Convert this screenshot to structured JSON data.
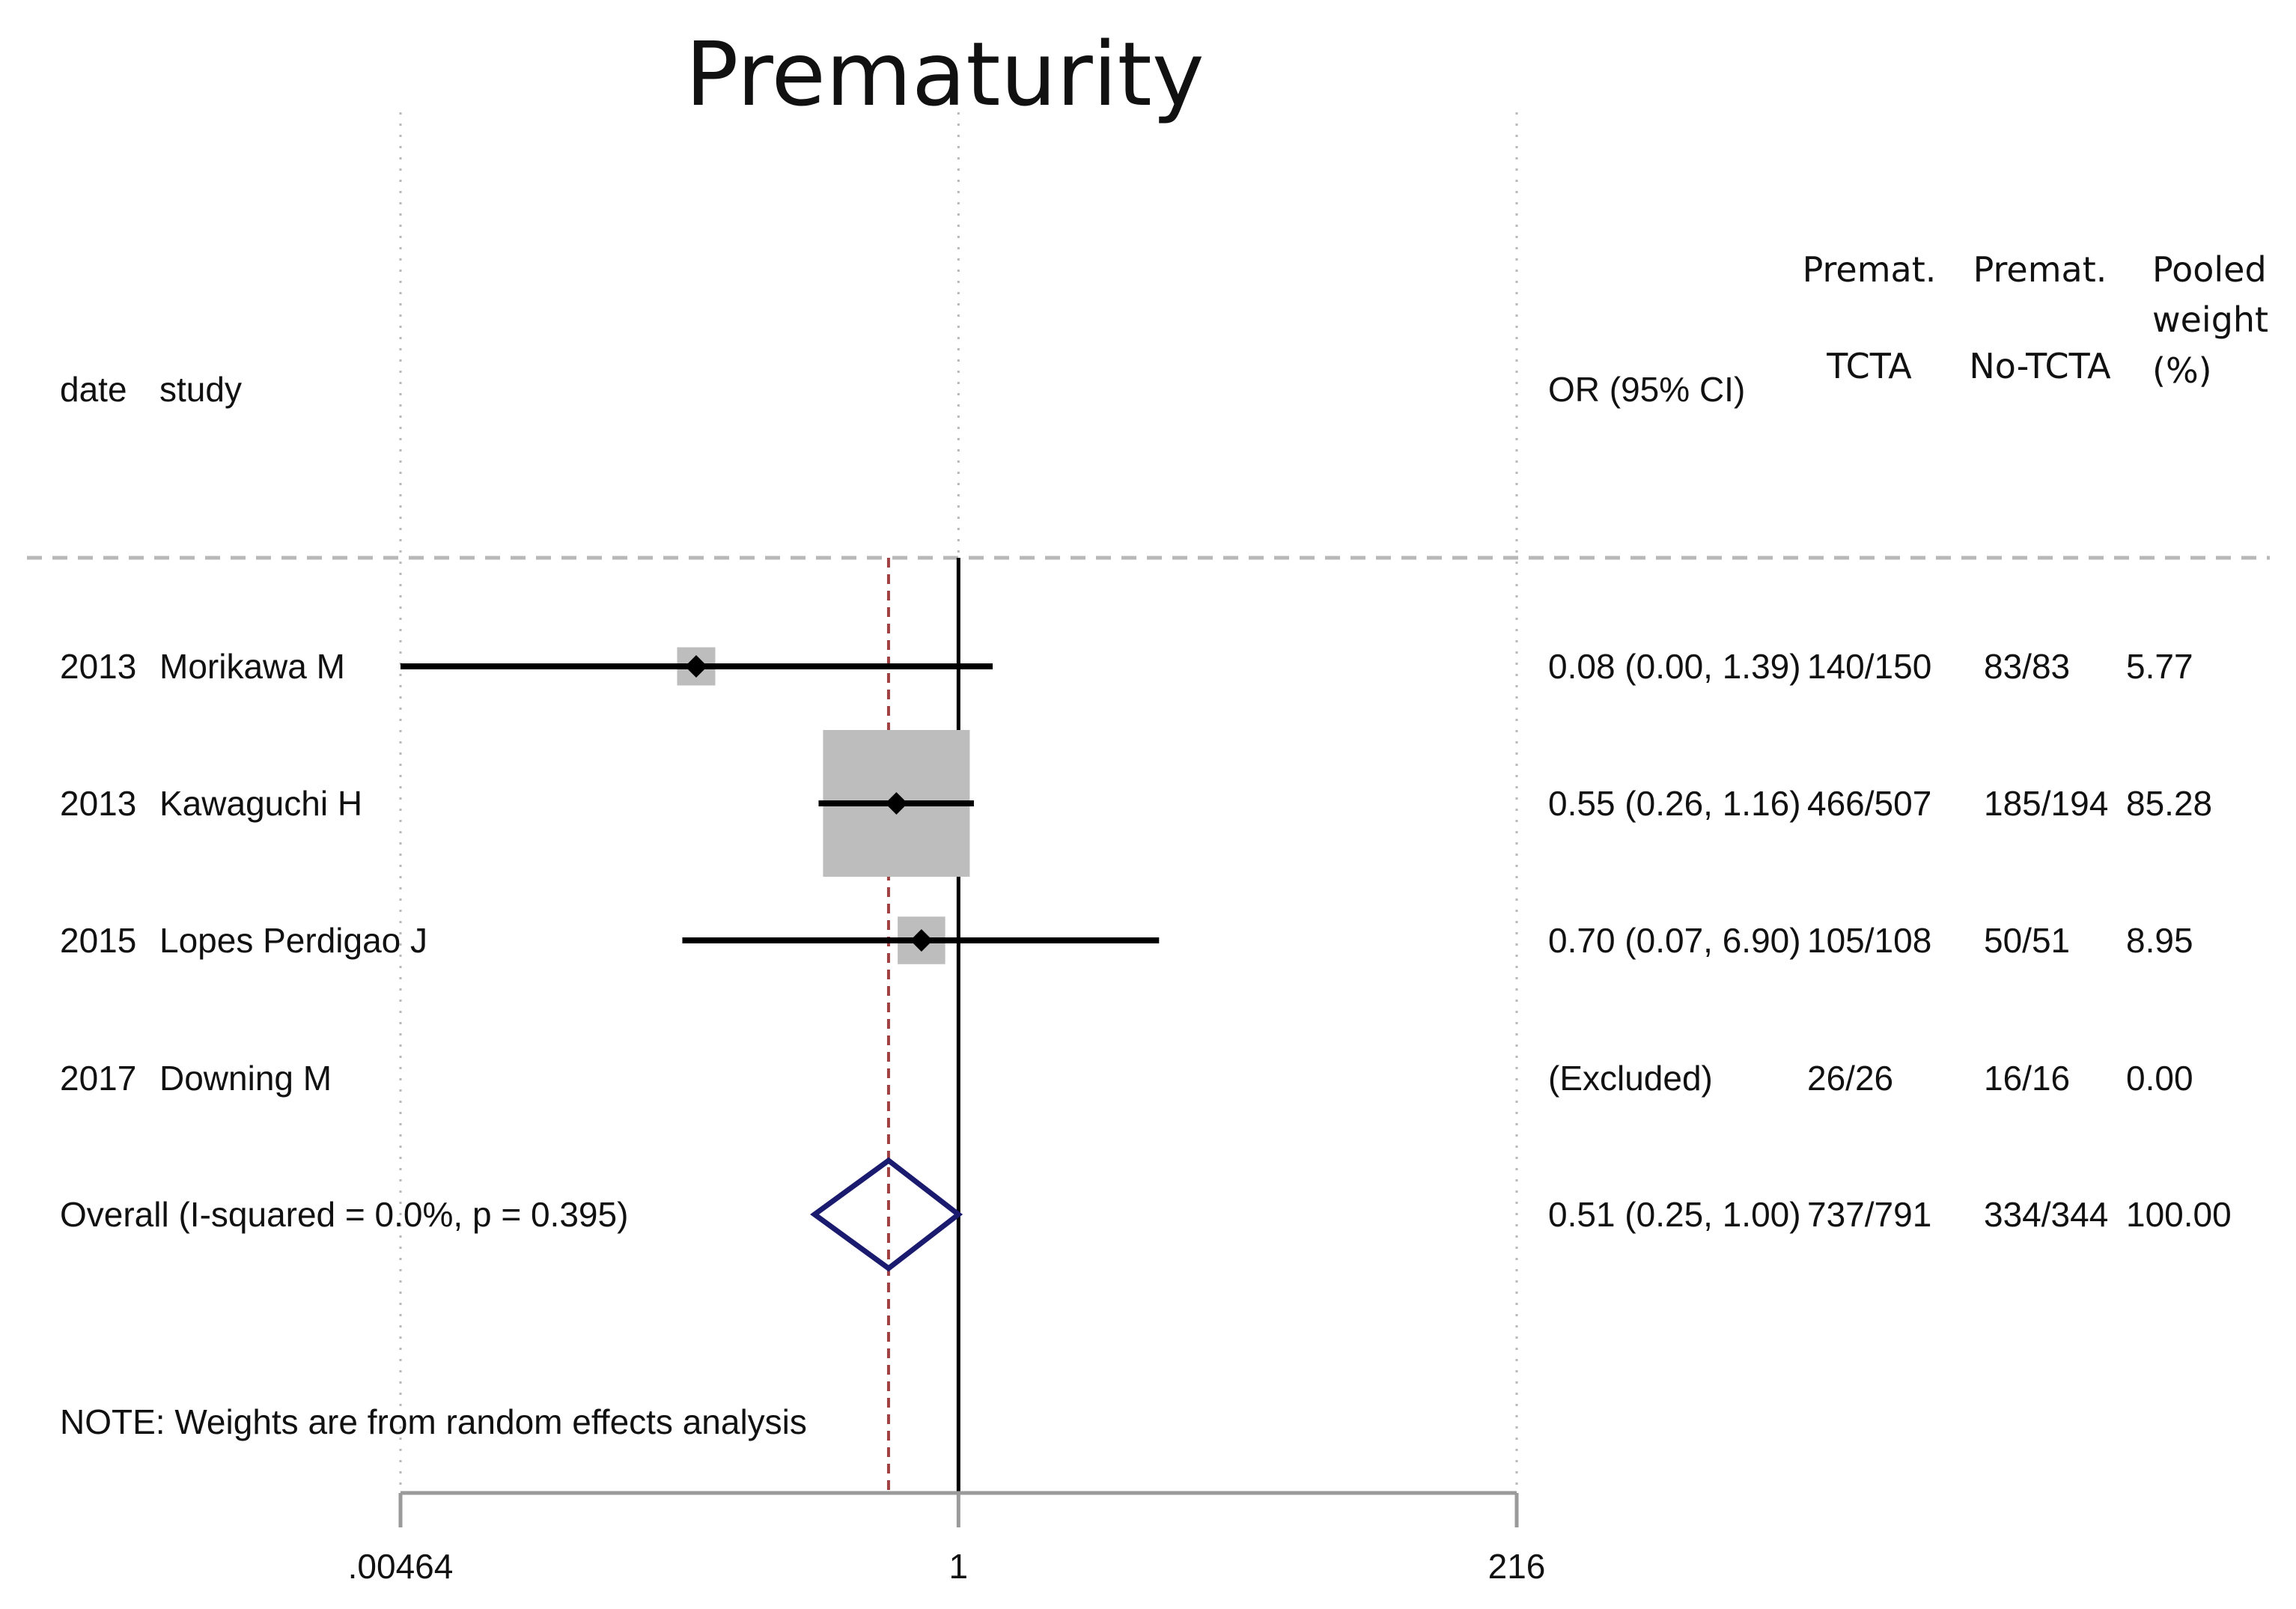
{
  "chart_data": {
    "type": "forest",
    "title": "Prematurity",
    "scale": "log",
    "xlim": [
      0.00464,
      216
    ],
    "x_ticks": [
      {
        "value": 0.00464,
        "label": ".00464"
      },
      {
        "value": 1,
        "label": "1"
      },
      {
        "value": 216,
        "label": "216"
      }
    ],
    "null_line": 1,
    "overall_line": 0.51,
    "headers": {
      "date": "date",
      "study": "study",
      "or": "OR (95% CI)",
      "tcta": [
        "Premat.",
        "TCTA"
      ],
      "notcta": [
        "Premat.",
        "No-TCTA"
      ],
      "weight": [
        "Pooled",
        "weight",
        "(%)"
      ]
    },
    "studies": [
      {
        "date": "2013",
        "study": "Morikawa M",
        "or": 0.08,
        "lower": 0.0,
        "upper": 1.39,
        "or_text": "0.08 (0.00, 1.39)",
        "tcta": "140/150",
        "notcta": "83/83",
        "weight": 5.77,
        "weight_text": "5.77"
      },
      {
        "date": "2013",
        "study": "Kawaguchi H",
        "or": 0.55,
        "lower": 0.26,
        "upper": 1.16,
        "or_text": "0.55 (0.26, 1.16)",
        "tcta": "466/507",
        "notcta": "185/194",
        "weight": 85.28,
        "weight_text": "85.28"
      },
      {
        "date": "2015",
        "study": "Lopes Perdigao J",
        "or": 0.7,
        "lower": 0.07,
        "upper": 6.9,
        "or_text": "0.70 (0.07, 6.90)",
        "tcta": "105/108",
        "notcta": "50/51",
        "weight": 8.95,
        "weight_text": "8.95"
      },
      {
        "date": "2017",
        "study": "Downing M",
        "or": null,
        "lower": null,
        "upper": null,
        "or_text": "(Excluded)",
        "tcta": "26/26",
        "notcta": "16/16",
        "weight": 0,
        "weight_text": "0.00"
      }
    ],
    "overall": {
      "label": "Overall  (I-squared = 0.0%, p = 0.395)",
      "or": 0.51,
      "lower": 0.25,
      "upper": 1.0,
      "or_text": "0.51 (0.25, 1.00)",
      "tcta": "737/791",
      "notcta": "334/344",
      "weight_text": "100.00"
    },
    "note": "NOTE: Weights are from random effects analysis"
  },
  "colors": {
    "text": "#111111",
    "ci_line": "#000000",
    "weight_box": "#bdbdbd",
    "overall_diamond": "#1a1a6e",
    "overall_line": "#a04040",
    "gridline": "#b8b8b8",
    "axis": "#9a9a9a"
  }
}
